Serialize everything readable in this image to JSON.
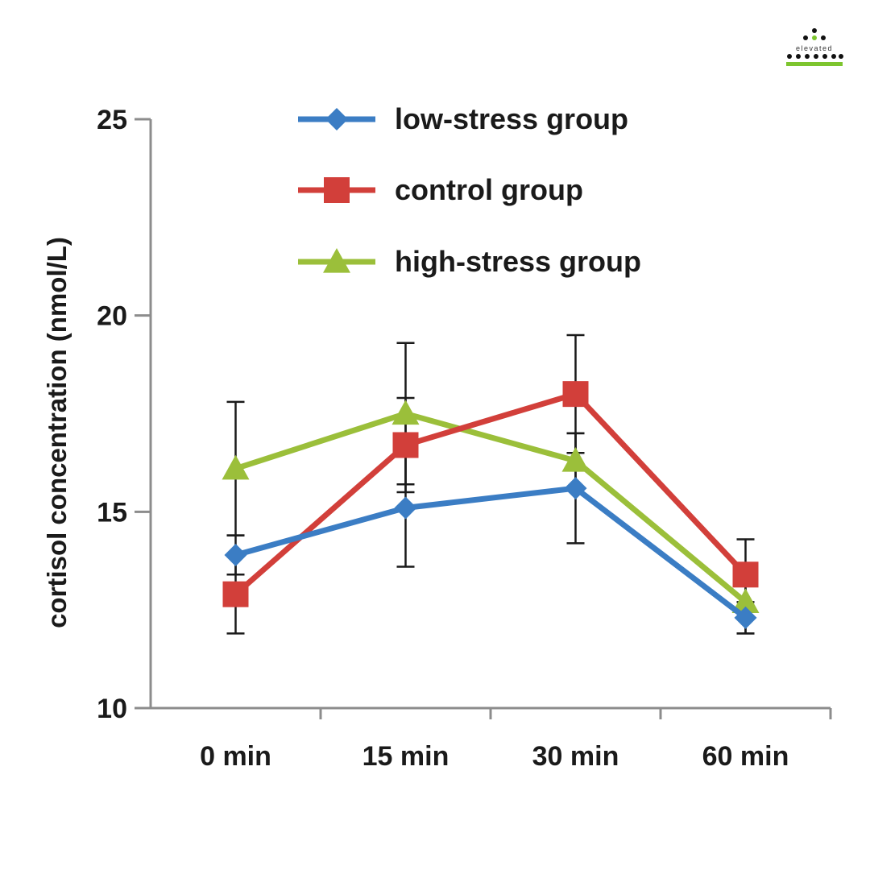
{
  "brand": {
    "name": "elevated",
    "tagline": "",
    "colors": {
      "dot": "#111111",
      "accent": "#7dc52e"
    }
  },
  "chart_data": {
    "type": "line",
    "title": "",
    "xlabel": "",
    "ylabel": "cortisol concentration (nmol/L)",
    "categories": [
      "0 min",
      "15 min",
      "30 min",
      "60 min"
    ],
    "ylim": [
      10,
      25
    ],
    "yticks": [
      10,
      15,
      20,
      25
    ],
    "grid": false,
    "legend_position": "top-center",
    "series": [
      {
        "name": "low-stress group",
        "color": "#3b7dc4",
        "marker": "diamond",
        "values": [
          13.9,
          15.1,
          15.6,
          12.3
        ],
        "error": [
          0.5,
          1.5,
          1.4,
          0.4
        ]
      },
      {
        "name": "control group",
        "color": "#d23f3a",
        "marker": "square",
        "values": [
          12.9,
          16.7,
          18.0,
          13.4
        ],
        "error": [
          1.0,
          1.2,
          1.5,
          0.9
        ]
      },
      {
        "name": "high-stress group",
        "color": "#9bbf3a",
        "marker": "triangle",
        "values": [
          16.1,
          17.5,
          16.3,
          12.7
        ],
        "error": [
          1.7,
          1.8,
          0.7,
          0.8
        ]
      }
    ]
  }
}
